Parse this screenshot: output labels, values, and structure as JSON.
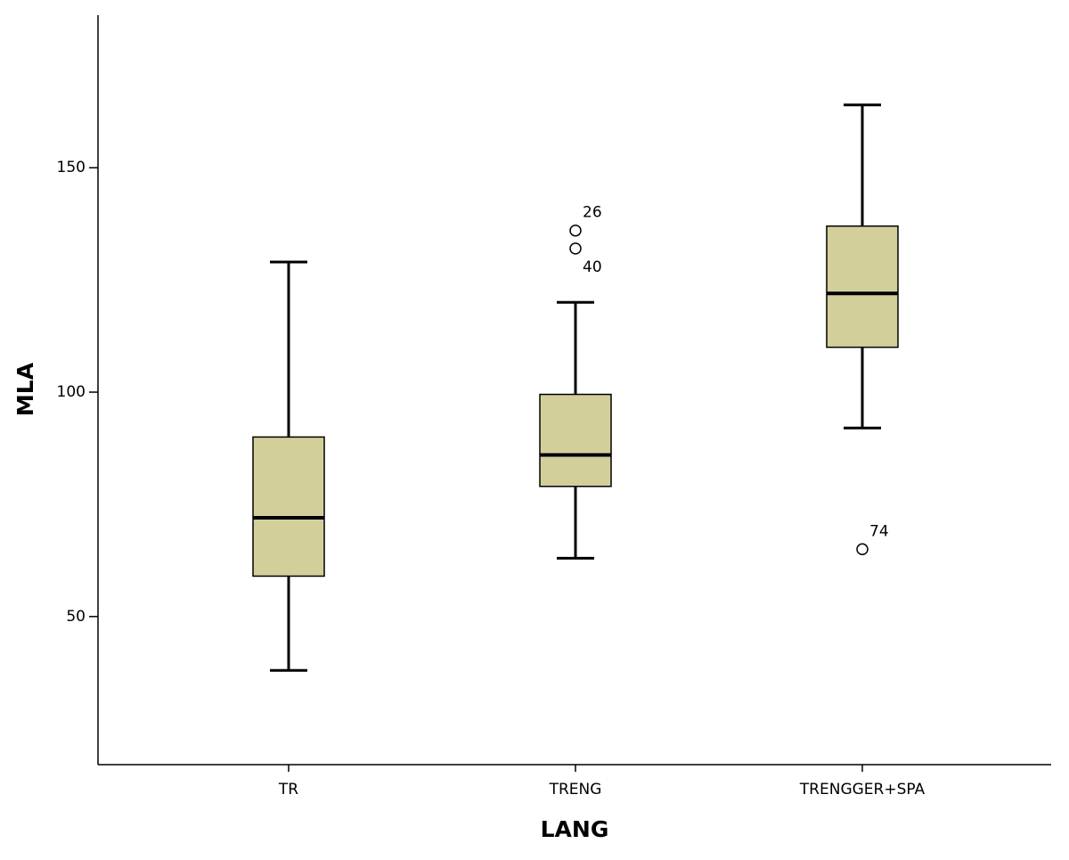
{
  "chart_data": {
    "type": "box",
    "x_label": "LANG",
    "y_label": "MLA",
    "categories": [
      "TR",
      "TRENG",
      "TRENGGER+SPA"
    ],
    "color": "#d3cf9b",
    "boxes": [
      {
        "min": 38,
        "q1": 59,
        "median": 72,
        "q3": 90,
        "max": 129,
        "outliers": []
      },
      {
        "min": 63,
        "q1": 79,
        "median": 86,
        "q3": 99.5,
        "max": 120,
        "outliers": [
          {
            "value": 136,
            "label": "26"
          },
          {
            "value": 132,
            "label": "40"
          }
        ]
      },
      {
        "min": 92,
        "q1": 110,
        "median": 122,
        "q3": 137,
        "max": 164,
        "outliers": [
          {
            "value": 65,
            "label": "74"
          }
        ]
      }
    ],
    "ylim": [
      17,
      184
    ],
    "yticks": [
      50,
      100,
      150
    ]
  }
}
